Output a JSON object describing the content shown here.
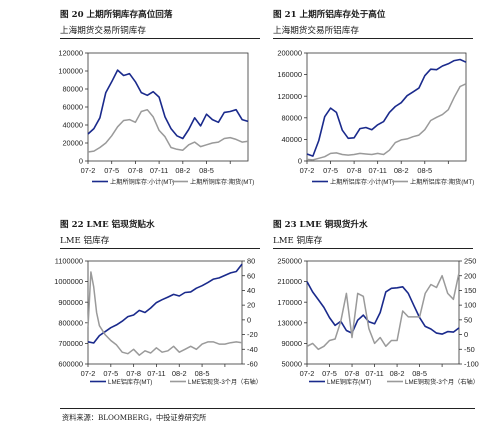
{
  "source": "资料来源：BLOOMBERG，中投证券研究所",
  "colors": {
    "primary": "#1a2a8c",
    "secondary": "#9a9a9a"
  },
  "chart_data": [
    {
      "id": "c1",
      "type": "line",
      "fig_title": "图 20  上期所铜库存高位回落",
      "subtitle": "上海期货交易所铜库存",
      "x": [
        0,
        4,
        8,
        12,
        16,
        20,
        24
      ],
      "xticklabels": [
        "07-2",
        "07-5",
        "07-8",
        "07-11",
        "08-2",
        "08-5",
        ""
      ],
      "xlim": [
        0,
        27
      ],
      "y_left": {
        "lim": [
          0,
          120000
        ],
        "ticks": [
          0,
          20000,
          40000,
          60000,
          80000,
          100000,
          120000
        ]
      },
      "series": [
        {
          "name": "上期所铜库存:小计(MT)",
          "axis": "left",
          "color": "#1a2a8c",
          "x": [
            0,
            1,
            2,
            3,
            4,
            5,
            6,
            7,
            8,
            9,
            10,
            11,
            12,
            13,
            14,
            15,
            16,
            17,
            18,
            19,
            20,
            21,
            22,
            23,
            24,
            25,
            26,
            27
          ],
          "values": [
            30000,
            36000,
            48000,
            76000,
            88000,
            101000,
            95000,
            97000,
            88000,
            76000,
            73000,
            77000,
            71000,
            49000,
            36000,
            28000,
            25000,
            35000,
            48000,
            39000,
            52000,
            46000,
            43000,
            54000,
            55000,
            57000,
            46000,
            44000
          ]
        },
        {
          "name": "上期所铜库存:期货(MT)",
          "axis": "left",
          "color": "#9a9a9a",
          "x": [
            0,
            1,
            2,
            3,
            4,
            5,
            6,
            7,
            8,
            9,
            10,
            11,
            12,
            13,
            14,
            15,
            16,
            17,
            18,
            19,
            20,
            21,
            22,
            23,
            24,
            25,
            26,
            27
          ],
          "values": [
            10000,
            11000,
            15000,
            20000,
            28000,
            38000,
            45000,
            46000,
            43000,
            55000,
            57000,
            49000,
            34000,
            27000,
            15000,
            13000,
            12000,
            18000,
            21000,
            16000,
            18000,
            20000,
            21000,
            25000,
            26000,
            24000,
            21000,
            22000
          ]
        }
      ]
    },
    {
      "id": "c2",
      "type": "line",
      "fig_title": "图 21  上期所铝库存处于高位",
      "subtitle": "上海期货交易所铝库存",
      "x": [
        0,
        4,
        8,
        12,
        16,
        20,
        24
      ],
      "xticklabels": [
        "07-2",
        "07-5",
        "07-8",
        "07-11",
        "08-2",
        "08-5",
        ""
      ],
      "xlim": [
        0,
        27
      ],
      "y_left": {
        "lim": [
          0,
          200000
        ],
        "ticks": [
          0,
          40000,
          80000,
          120000,
          160000,
          200000
        ]
      },
      "series": [
        {
          "name": "上期所铝库存:小计(MT)",
          "axis": "left",
          "color": "#1a2a8c",
          "x": [
            0,
            1,
            2,
            3,
            4,
            5,
            6,
            7,
            8,
            9,
            10,
            11,
            12,
            13,
            14,
            15,
            16,
            17,
            18,
            19,
            20,
            21,
            22,
            23,
            24,
            25,
            26,
            27
          ],
          "values": [
            13000,
            9000,
            38000,
            82000,
            98000,
            90000,
            57000,
            42000,
            43000,
            60000,
            62000,
            58000,
            67000,
            73000,
            90000,
            101000,
            108000,
            121000,
            128000,
            135000,
            158000,
            170000,
            169000,
            176000,
            180000,
            186000,
            188000,
            183000
          ]
        },
        {
          "name": "上期所铝库存:期货(MT)",
          "axis": "left",
          "color": "#9a9a9a",
          "x": [
            0,
            1,
            2,
            3,
            4,
            5,
            6,
            7,
            8,
            9,
            10,
            11,
            12,
            13,
            14,
            15,
            16,
            17,
            18,
            19,
            20,
            21,
            22,
            23,
            24,
            25,
            26,
            27
          ],
          "values": [
            3000,
            2000,
            5000,
            8000,
            14000,
            15000,
            12000,
            11000,
            12000,
            14000,
            13000,
            12000,
            14000,
            12000,
            20000,
            34000,
            39000,
            41000,
            45000,
            48000,
            58000,
            75000,
            81000,
            86000,
            95000,
            118000,
            138000,
            143000
          ]
        }
      ]
    },
    {
      "id": "c3",
      "type": "line",
      "fig_title": "图 22 LME 铝现货贴水",
      "subtitle": "LME 铝库存",
      "x": [
        0,
        4,
        8,
        12,
        16,
        20,
        24
      ],
      "xticklabels": [
        "07-2",
        "07-5",
        "07-8",
        "07-11",
        "08-2",
        "08-5",
        ""
      ],
      "xlim": [
        0,
        27
      ],
      "y_left": {
        "lim": [
          600000,
          1100000
        ],
        "ticks": [
          600000,
          700000,
          800000,
          900000,
          1000000,
          1100000
        ]
      },
      "y_right": {
        "lim": [
          -60,
          80
        ],
        "ticks": [
          -60,
          -40,
          -20,
          0,
          20,
          40,
          60,
          80
        ]
      },
      "series": [
        {
          "name": "LME铝库存(MT)",
          "axis": "left",
          "color": "#1a2a8c",
          "x": [
            0,
            1,
            2,
            3,
            4,
            5,
            6,
            7,
            8,
            9,
            10,
            11,
            12,
            13,
            14,
            15,
            16,
            17,
            18,
            19,
            20,
            21,
            22,
            23,
            24,
            25,
            26,
            27
          ],
          "values": [
            708000,
            702000,
            738000,
            757000,
            776000,
            790000,
            808000,
            830000,
            838000,
            860000,
            850000,
            872000,
            898000,
            912000,
            925000,
            938000,
            930000,
            947000,
            950000,
            968000,
            980000,
            995000,
            1012000,
            1018000,
            1030000,
            1042000,
            1049000,
            1085000
          ]
        },
        {
          "name": "LME铝现货-3个月（右轴）",
          "axis": "right",
          "color": "#9a9a9a",
          "x": [
            0,
            0.5,
            1,
            1.5,
            2,
            3,
            4,
            5,
            6,
            7,
            8,
            9,
            10,
            11,
            12,
            13,
            14,
            15,
            16,
            17,
            18,
            19,
            20,
            21,
            22,
            23,
            24,
            25,
            26,
            27
          ],
          "values": [
            -10,
            65,
            45,
            10,
            -8,
            -20,
            -28,
            -34,
            -44,
            -46,
            -40,
            -48,
            -42,
            -45,
            -38,
            -44,
            -42,
            -36,
            -44,
            -40,
            -36,
            -40,
            -33,
            -30,
            -30,
            -33,
            -33,
            -31,
            -30,
            -31
          ]
        }
      ]
    },
    {
      "id": "c4",
      "type": "line",
      "fig_title": "图 23 LME 铜现货升水",
      "subtitle": "LME 铜库存",
      "x": [
        0,
        4,
        8,
        12,
        16,
        20,
        24
      ],
      "xticklabels": [
        "07-2",
        "07-5",
        "07-8",
        "07-11",
        "08-2",
        "08-5",
        ""
      ],
      "xlim": [
        0,
        27
      ],
      "y_left": {
        "lim": [
          50000,
          250000
        ],
        "ticks": [
          50000,
          90000,
          130000,
          170000,
          210000,
          250000
        ]
      },
      "y_right": {
        "lim": [
          -100,
          250
        ],
        "ticks": [
          -100,
          -50,
          0,
          50,
          100,
          150,
          200,
          250
        ]
      },
      "series": [
        {
          "name": "LME铜库存(MT)",
          "axis": "left",
          "color": "#1a2a8c",
          "x": [
            0,
            1,
            2,
            3,
            4,
            5,
            6,
            7,
            8,
            9,
            10,
            11,
            12,
            13,
            14,
            15,
            16,
            17,
            18,
            19,
            20,
            21,
            22,
            23,
            24,
            25,
            26,
            27
          ],
          "values": [
            210000,
            190000,
            175000,
            160000,
            140000,
            125000,
            133000,
            115000,
            110000,
            135000,
            145000,
            132000,
            128000,
            150000,
            190000,
            197000,
            198000,
            200000,
            187000,
            163000,
            140000,
            123000,
            118000,
            110000,
            108000,
            113000,
            112000,
            120000
          ]
        },
        {
          "name": "LME铜现货-3个月（右轴）",
          "axis": "right",
          "color": "#9a9a9a",
          "x": [
            0,
            1,
            2,
            3,
            4,
            5,
            6,
            7,
            8,
            9,
            10,
            11,
            12,
            13,
            14,
            15,
            16,
            17,
            18,
            19,
            20,
            21,
            22,
            23,
            24,
            25,
            26,
            27
          ],
          "values": [
            -40,
            -30,
            -50,
            -40,
            -20,
            -15,
            45,
            140,
            -10,
            140,
            130,
            20,
            -30,
            -10,
            -40,
            -20,
            -20,
            80,
            60,
            60,
            60,
            140,
            170,
            160,
            200,
            140,
            120,
            210
          ]
        }
      ]
    }
  ]
}
